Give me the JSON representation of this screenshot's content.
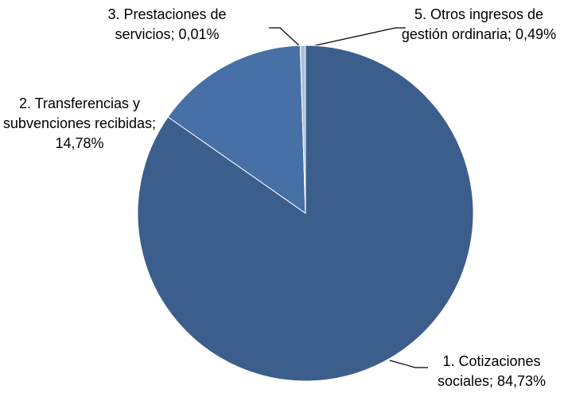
{
  "chart_data": {
    "type": "pie",
    "categories": [
      "1. Cotizaciones sociales",
      "2. Transferencias y subvenciones recibidas",
      "3. Prestaciones de servicios",
      "5. Otros ingresos de gestión ordinaria"
    ],
    "values": [
      84.73,
      14.78,
      0.01,
      0.49
    ],
    "value_labels": [
      "84,73%",
      "14,78%",
      "0,01%",
      "0,49%"
    ],
    "label_separator": ";",
    "colors": [
      "#3b5e8c",
      "#4670a6",
      "#6f92c6",
      "#a8bedd"
    ]
  }
}
